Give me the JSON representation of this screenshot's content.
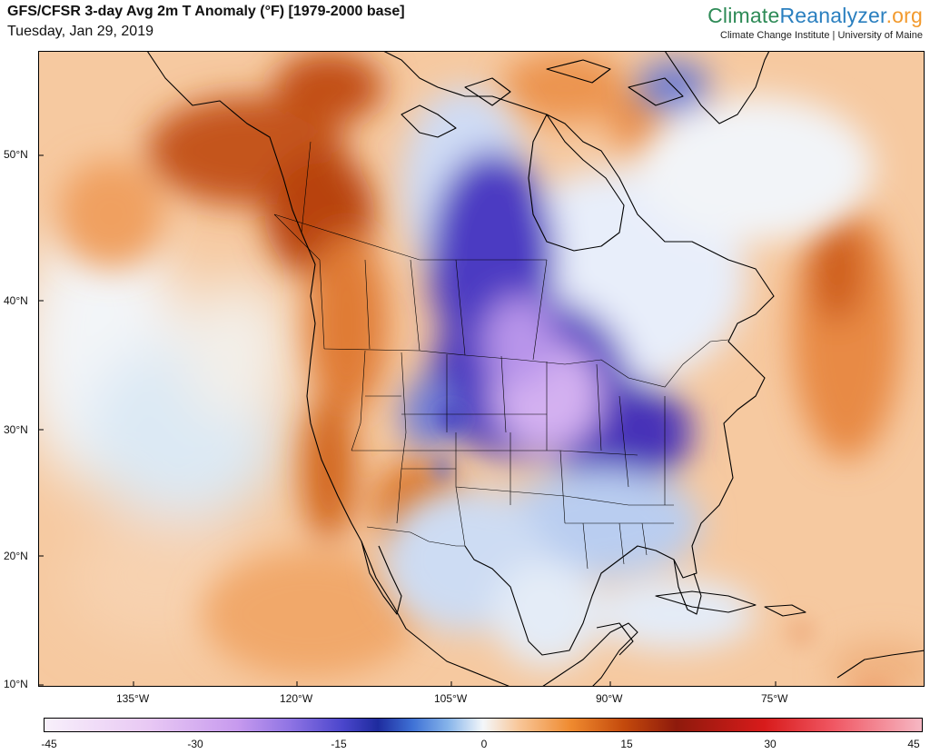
{
  "header": {
    "title": "GFS/CFSR 3-day Avg 2m T Anomaly (°F) [1979-2000 base]",
    "date": "Tuesday, Jan 29, 2019"
  },
  "brand": {
    "logo_part1": "Climate",
    "logo_part2": "Reanalyzer",
    "logo_part3": ".org",
    "tagline": "Climate Change Institute | University of Maine"
  },
  "colors": {
    "ocean_warm": "#f6c08f",
    "deep_cold": "#3d2db0",
    "extreme_cold": "#d7b2f2",
    "hot": "#b8430c",
    "land_stroke": "#000000"
  },
  "axes": {
    "lat_labels": [
      "50°N",
      "40°N",
      "30°N",
      "20°N",
      "10°N"
    ],
    "lon_labels": [
      "135°W",
      "120°W",
      "105°W",
      "90°W",
      "75°W"
    ]
  },
  "colorbar": {
    "ticks": [
      "-45",
      "-30",
      "-15",
      "0",
      "15",
      "30",
      "45"
    ],
    "range": [
      -45,
      45
    ]
  }
}
